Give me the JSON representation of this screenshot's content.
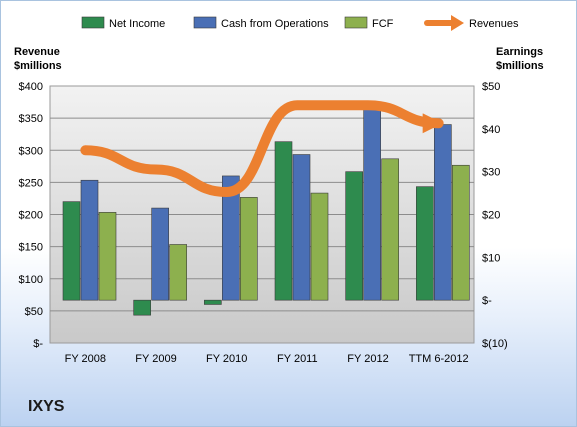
{
  "company": "IXYS",
  "chart_data": {
    "type": "bar",
    "categories": [
      "FY 2008",
      "FY 2009",
      "FY 2010",
      "FY 2011",
      "FY 2012",
      "TTM 6-2012"
    ],
    "series": [
      {
        "name": "Net Income",
        "axis": "right",
        "values": [
          23,
          -3.5,
          -1,
          37,
          30,
          26.5
        ],
        "color": "#2e8b4e"
      },
      {
        "name": "Cash from Operations",
        "axis": "right",
        "values": [
          28,
          21.5,
          29,
          34,
          44.5,
          41
        ],
        "color": "#4a6fb5"
      },
      {
        "name": "FCF",
        "axis": "right",
        "values": [
          20.5,
          13,
          24,
          25,
          33,
          31.5
        ],
        "color": "#8db04e"
      },
      {
        "name": "Revenues",
        "axis": "left",
        "type": "line",
        "values": [
          300,
          270,
          235,
          370,
          370,
          342
        ],
        "color": "#ec8030"
      }
    ],
    "ylabel": "Revenue\n$millions",
    "y2label": "Earnings\n$millions",
    "ylim": [
      0,
      400
    ],
    "y2lim": [
      -10,
      50
    ],
    "yticks": [
      "$-",
      "$50",
      "$100",
      "$150",
      "$200",
      "$250",
      "$300",
      "$350",
      "$400"
    ],
    "y2ticks": [
      "$(10)",
      "$-",
      "$10",
      "$20",
      "$30",
      "$40",
      "$50"
    ],
    "grid": true,
    "legend_position": "top"
  }
}
